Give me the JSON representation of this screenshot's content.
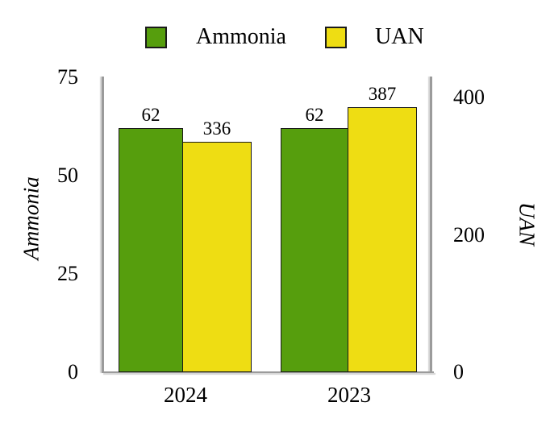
{
  "chart_data": {
    "type": "bar",
    "categories": [
      "2024",
      "2023"
    ],
    "series": [
      {
        "name": "Ammonia",
        "axis": "left",
        "color": "#569E0D",
        "values": [
          62,
          62
        ]
      },
      {
        "name": "UAN",
        "axis": "right",
        "color": "#EEDD13",
        "values": [
          336,
          387
        ]
      }
    ],
    "left_axis": {
      "label": "Ammonia",
      "range": [
        0,
        75
      ],
      "ticks_top_to_bottom": [
        "75",
        "50",
        "25",
        "0"
      ]
    },
    "right_axis": {
      "label": "UAN",
      "range": [
        0,
        400
      ],
      "ticks_top_to_bottom": [
        "400",
        "200",
        "0"
      ]
    },
    "legend": {
      "position": "top",
      "entries": [
        "Ammonia",
        "UAN"
      ]
    },
    "grid": false,
    "value_labels_shown": true,
    "bar_border_color": "#1a1a1a",
    "axis_line_color": "#9b9b9b",
    "background": "#ffffff",
    "text_color": "#000000"
  }
}
